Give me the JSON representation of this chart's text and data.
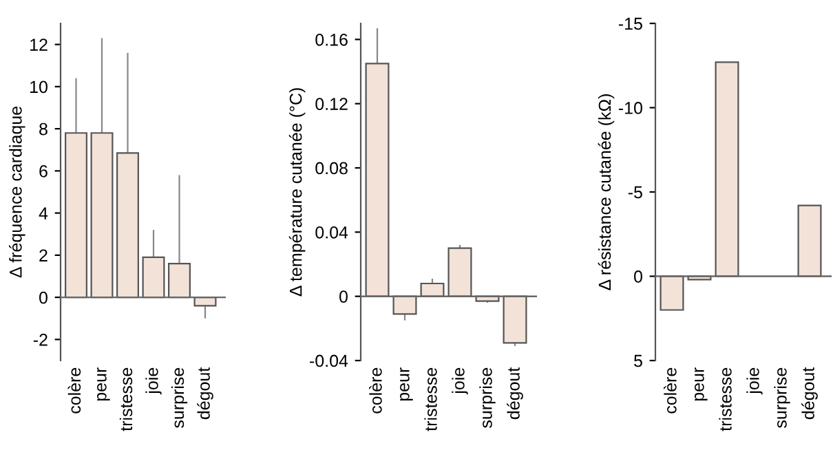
{
  "chart_data": [
    {
      "type": "bar",
      "ylabel": "Δ fréquence cardiaque",
      "categories": [
        "colère",
        "peur",
        "tristesse",
        "joie",
        "surprise",
        "dégout"
      ],
      "values": [
        7.8,
        7.8,
        6.85,
        1.9,
        1.6,
        -0.4
      ],
      "errors": [
        [
          7.8,
          10.4
        ],
        [
          7.8,
          12.3
        ],
        [
          6.85,
          11.6
        ],
        [
          1.9,
          3.2
        ],
        [
          1.6,
          5.8
        ],
        [
          -1.0,
          -0.4
        ]
      ],
      "color": "#f2e2d8",
      "ylim": [
        -3,
        13
      ],
      "yticks": [
        -2,
        0,
        2,
        4,
        6,
        8,
        10,
        12
      ],
      "grid": false,
      "ref_lines": [
        {
          "axis": "y",
          "value": 0,
          "label": null,
          "color": "#666666"
        }
      ]
    },
    {
      "type": "bar",
      "ylabel": "Δ température cutanée (°C)",
      "categories": [
        "colère",
        "peur",
        "tristesse",
        "joie",
        "surprise",
        "dégout"
      ],
      "values": [
        0.145,
        -0.011,
        0.008,
        0.03,
        -0.003,
        -0.029
      ],
      "errors": [
        [
          0.145,
          0.167
        ],
        [
          -0.015,
          -0.011
        ],
        [
          0.008,
          0.011
        ],
        [
          0.03,
          0.032
        ],
        [
          -0.004,
          -0.003
        ],
        [
          -0.031,
          -0.029
        ]
      ],
      "color": "#f2e2d8",
      "ylim": [
        -0.04,
        0.17
      ],
      "yticks": [
        {
          "value": -0.04,
          "label": "-0.04"
        },
        0,
        0.04,
        0.08,
        0.12,
        0.16
      ],
      "grid": false,
      "ref_lines": [
        {
          "axis": "y",
          "value": 0,
          "label": null,
          "color": "#666666"
        }
      ]
    },
    {
      "type": "bar",
      "ylabel": "Δ résistance cutanée (kΩ)",
      "categories": [
        "colère",
        "peur",
        "tristesse",
        "joie",
        "surprise",
        "dégout"
      ],
      "values": [
        2,
        0.2,
        -12.7,
        null,
        null,
        -4.2
      ],
      "color": "#f2e2d8",
      "ylim": [
        5,
        -15
      ],
      "yticks": [
        5,
        0,
        -5,
        -10,
        -15
      ],
      "grid": false,
      "ref_lines": [
        {
          "axis": "y",
          "value": 0,
          "label": null,
          "color": "#666666"
        }
      ]
    }
  ]
}
